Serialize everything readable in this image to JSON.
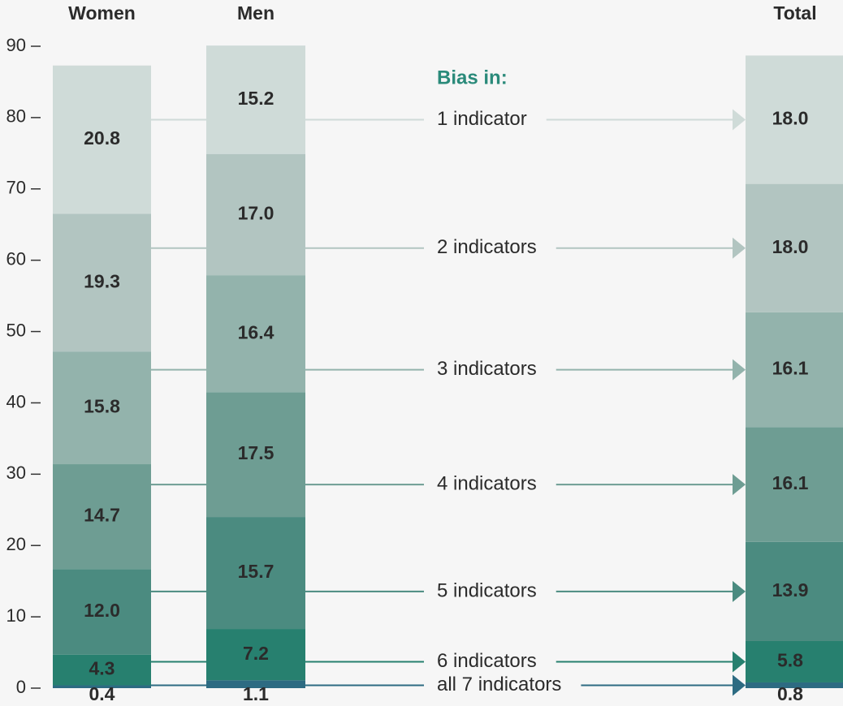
{
  "chart_data": {
    "type": "stacked_bar",
    "categories": [
      "Women",
      "Men",
      "Total"
    ],
    "legend_title": "Bias in:",
    "series": [
      {
        "name": "all 7 indicators",
        "color": "#2d6b82",
        "values": [
          0.4,
          1.1,
          0.8
        ],
        "value_labels": [
          "0.4",
          "1.1",
          "0.8"
        ]
      },
      {
        "name": "6 indicators",
        "color": "#27806f",
        "values": [
          4.3,
          7.2,
          5.8
        ],
        "value_labels": [
          "4.3",
          "7.2",
          "5.8"
        ]
      },
      {
        "name": "5 indicators",
        "color": "#4b8b80",
        "values": [
          12.0,
          15.7,
          13.9
        ],
        "value_labels": [
          "12.0",
          "15.7",
          "13.9"
        ]
      },
      {
        "name": "4 indicators",
        "color": "#6e9d93",
        "values": [
          14.7,
          17.5,
          16.1
        ],
        "value_labels": [
          "14.7",
          "17.5",
          "16.1"
        ]
      },
      {
        "name": "3 indicators",
        "color": "#93b3ac",
        "values": [
          15.8,
          16.4,
          16.1
        ],
        "value_labels": [
          "15.8",
          "16.4",
          "16.1"
        ]
      },
      {
        "name": "2 indicators",
        "color": "#b2c5c1",
        "values": [
          19.3,
          17.0,
          18.0
        ],
        "value_labels": [
          "19.3",
          "17.0",
          "18.0"
        ]
      },
      {
        "name": "1 indicator",
        "color": "#cfdbd8",
        "values": [
          20.8,
          15.2,
          18.0
        ],
        "value_labels": [
          "20.8",
          "15.2",
          "18.0"
        ]
      }
    ],
    "ylim": [
      0,
      90
    ],
    "yticks": [
      0,
      10,
      20,
      30,
      40,
      50,
      60,
      70,
      80,
      90
    ]
  }
}
